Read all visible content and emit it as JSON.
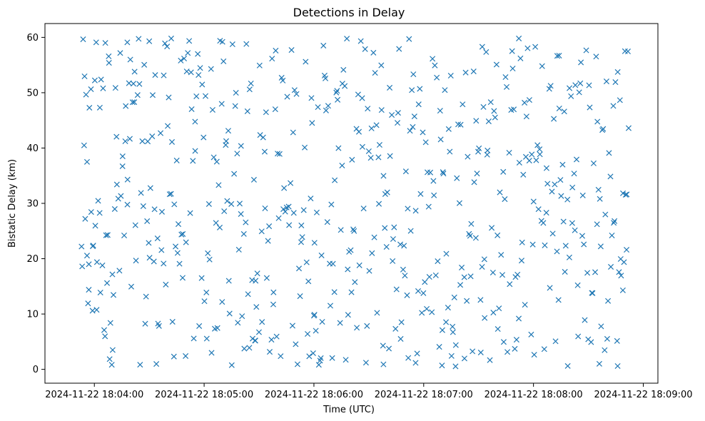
{
  "chart_data": {
    "type": "scatter",
    "title": "Detections in Delay",
    "xlabel": "Time (UTC)",
    "ylabel": "Bistatic Delay (km)",
    "x_type": "datetime",
    "xlim": [
      "2024-11-22 18:03:33",
      "2024-11-22 18:09:08"
    ],
    "ylim": [
      -2.5,
      62.5
    ],
    "x_ticks": [
      "2024-11-22 18:04:00",
      "2024-11-22 18:05:00",
      "2024-11-22 18:06:00",
      "2024-11-22 18:07:00",
      "2024-11-22 18:08:00",
      "2024-11-22 18:09:00"
    ],
    "y_ticks": [
      0,
      10,
      20,
      30,
      40,
      50,
      60
    ],
    "grid": false,
    "marker": "x",
    "marker_color": "#1f77b4",
    "series": [
      {
        "x_start": "2024-11-22 18:03:53",
        "x_end": "2024-11-22 18:08:52",
        "y_min": 0.5,
        "y_max": 59.9,
        "count": 600,
        "points_sample": [
          [
            "2024-11-22 18:03:53",
            22.2
          ],
          [
            "2024-11-22 18:03:55",
            27.2
          ],
          [
            "2024-11-22 18:03:56",
            37.5
          ],
          [
            "2024-11-22 18:03:57",
            19.0
          ],
          [
            "2024-11-22 18:03:59",
            10.6
          ],
          [
            "2024-11-22 18:04:01",
            59.1
          ],
          [
            "2024-11-22 18:04:03",
            47.3
          ],
          [
            "2024-11-22 18:04:06",
            59.0
          ],
          [
            "2024-11-22 18:04:08",
            55.4
          ],
          [
            "2024-11-22 18:04:10",
            3.5
          ],
          [
            "2024-11-22 18:04:18",
            59.1
          ],
          [
            "2024-11-22 18:04:22",
            53.8
          ],
          [
            "2024-11-22 18:04:30",
            59.3
          ],
          [
            "2024-11-22 18:04:42",
            59.8
          ],
          [
            "2024-11-22 18:05:10",
            59.2
          ],
          [
            "2024-11-22 18:05:28",
            5.2
          ],
          [
            "2024-11-22 18:06:00",
            9.7
          ],
          [
            "2024-11-22 18:06:38",
            0.9
          ],
          [
            "2024-11-22 18:06:52",
            59.7
          ],
          [
            "2024-11-22 18:07:10",
            0.7
          ],
          [
            "2024-11-22 18:07:32",
            58.3
          ],
          [
            "2024-11-22 18:07:52",
            59.8
          ],
          [
            "2024-11-22 18:08:14",
            56.7
          ],
          [
            "2024-11-22 18:08:36",
            1.0
          ],
          [
            "2024-11-22 18:08:46",
            0.6
          ],
          [
            "2024-11-22 18:08:50",
            57.5
          ],
          [
            "2024-11-22 18:08:52",
            43.6
          ]
        ]
      }
    ]
  }
}
